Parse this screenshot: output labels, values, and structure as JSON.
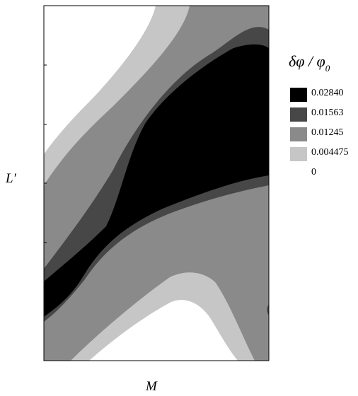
{
  "chart_data": {
    "type": "heatmap",
    "subtype": "filled-contour",
    "title": "",
    "xlabel": "M",
    "ylabel": "L′",
    "grid": false,
    "legend_position": "right",
    "legend": {
      "title_main": "δφ / φ",
      "title_sub": "0",
      "levels": [
        {
          "label": "0.02840",
          "color": "#000000"
        },
        {
          "label": "0.01563",
          "color": "#474747"
        },
        {
          "label": "0.01245",
          "color": "#8a8a8a"
        },
        {
          "label": "0.004475",
          "color": "#c6c6c6"
        },
        {
          "label": "0",
          "color": "#ffffff"
        }
      ]
    }
  }
}
